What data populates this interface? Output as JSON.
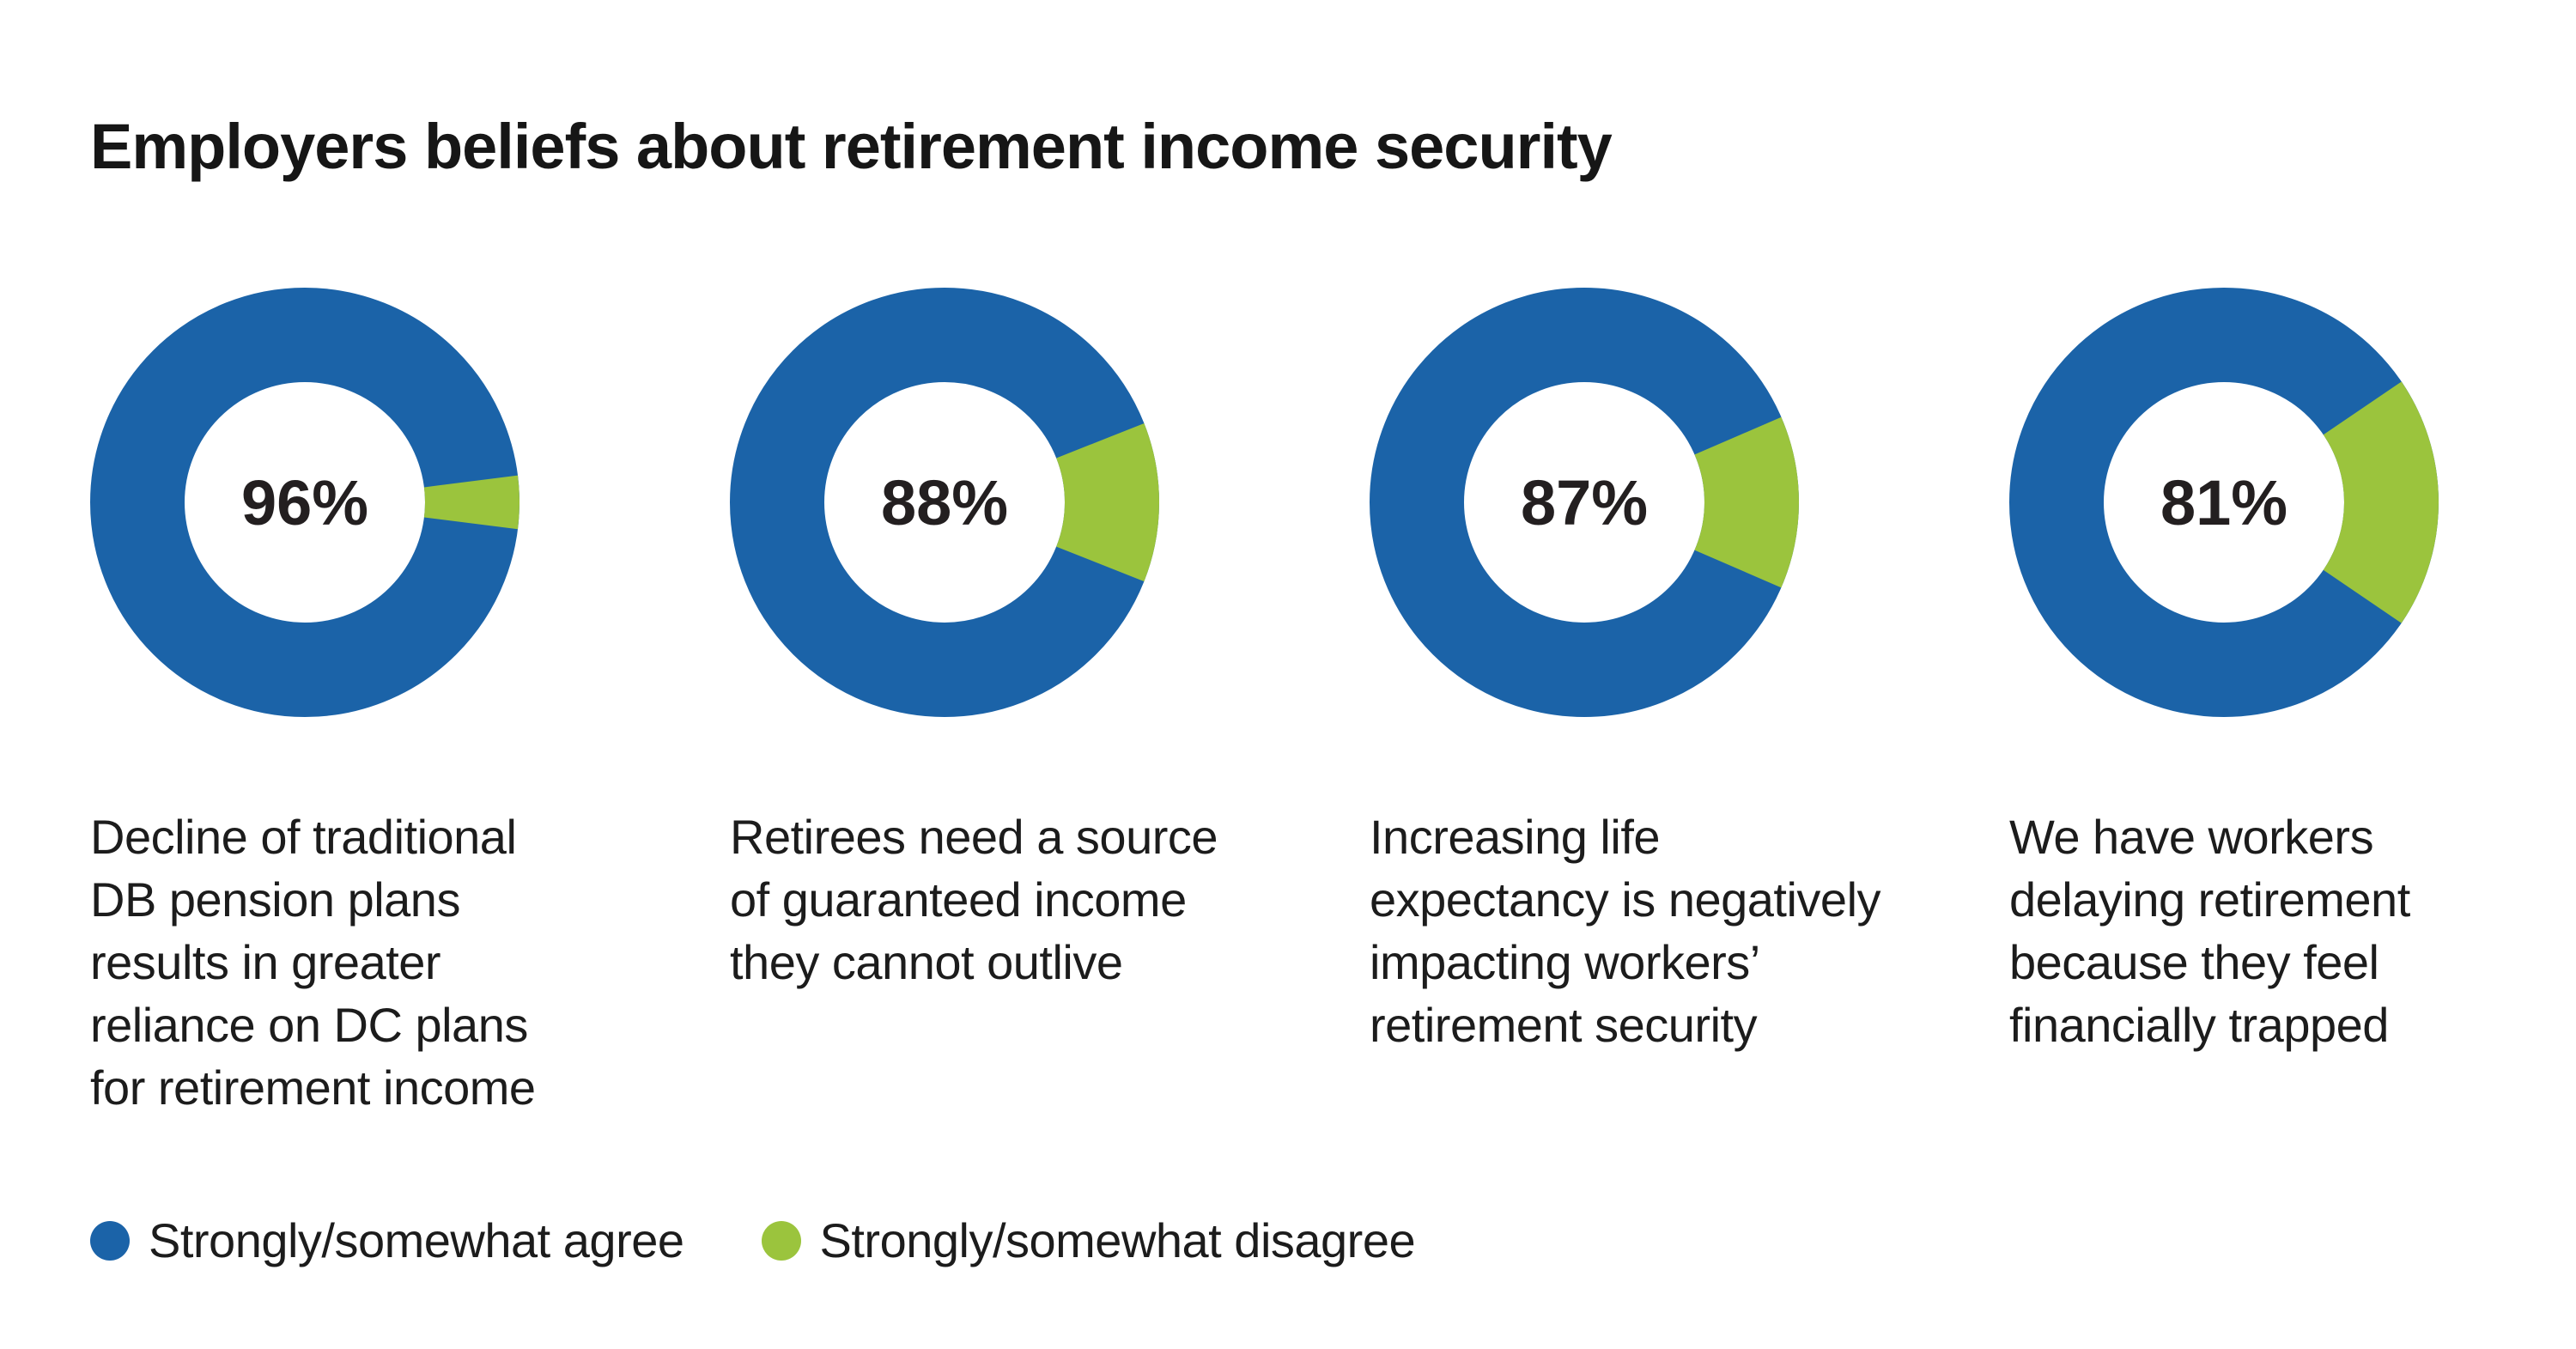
{
  "page": {
    "background": "#ffffff"
  },
  "header": {
    "title": "Employers beliefs about retirement income security"
  },
  "colors": {
    "agree": "#1b63a8",
    "disagree": "#9bc43d",
    "text": "#1c1c1c",
    "value_label": "#231f20"
  },
  "chart_data": {
    "type": "pie",
    "variant": "donut-multiples",
    "title": "Employers beliefs about retirement income security",
    "legend_position": "bottom",
    "grid": false,
    "series": [
      {
        "name": "Strongly/somewhat agree",
        "color": "#1b63a8"
      },
      {
        "name": "Strongly/somewhat disagree",
        "color": "#9bc43d"
      }
    ],
    "donuts": [
      {
        "label": "96%",
        "agree_pct": 96,
        "disagree_pct": 4,
        "caption": "Decline of traditional\nDB pension plans\nresults in greater\nreliance on DC plans\nfor retirement income"
      },
      {
        "label": "88%",
        "agree_pct": 88,
        "disagree_pct": 12,
        "caption": "Retirees need a source\nof guaranteed income\nthey cannot outlive"
      },
      {
        "label": "87%",
        "agree_pct": 87,
        "disagree_pct": 13,
        "caption": "Increasing life\nexpectancy is negatively\nimpacting workers’\nretirement security"
      },
      {
        "label": "81%",
        "agree_pct": 81,
        "disagree_pct": 19,
        "caption": "We have workers\ndelaying retirement\nbecause they feel\nfinancially trapped"
      }
    ]
  },
  "legend": {
    "items": [
      {
        "label": "Strongly/somewhat agree",
        "color": "#1b63a8",
        "icon": "circle-dot"
      },
      {
        "label": "Strongly/somewhat disagree",
        "color": "#9bc43d",
        "icon": "circle-dot"
      }
    ]
  }
}
